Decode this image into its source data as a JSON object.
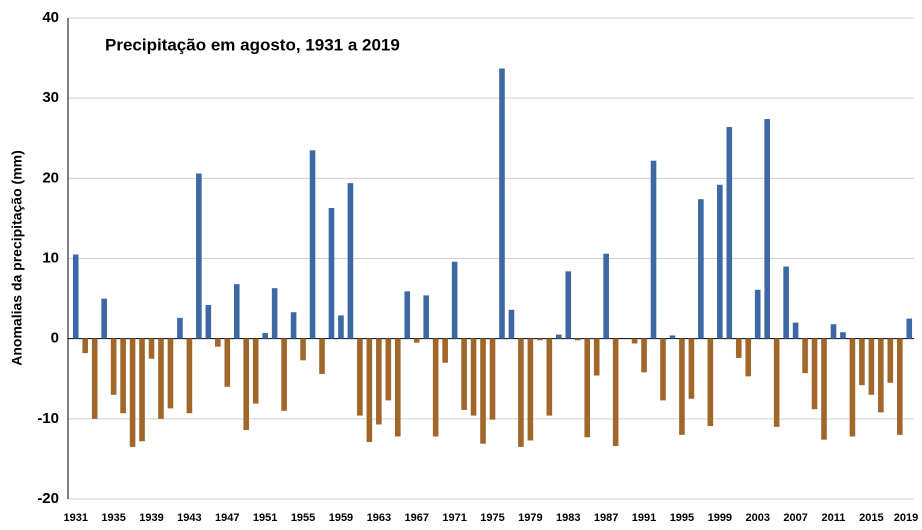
{
  "chart_data": {
    "type": "bar",
    "title": "Precipitação em agosto, 1931 a 2019",
    "y_label": "Anomalias da precipitação (mm)",
    "categories": [
      1931,
      null,
      null,
      null,
      1935,
      null,
      null,
      null,
      1939,
      null,
      null,
      null,
      1943,
      null,
      null,
      null,
      1947,
      null,
      null,
      null,
      1951,
      null,
      null,
      null,
      1955,
      null,
      null,
      null,
      1959,
      null,
      null,
      null,
      1963,
      null,
      null,
      null,
      1967,
      null,
      null,
      null,
      1971,
      null,
      null,
      null,
      1975,
      null,
      null,
      null,
      1979,
      null,
      null,
      null,
      1983,
      null,
      null,
      null,
      1987,
      null,
      null,
      null,
      1991,
      null,
      null,
      null,
      1995,
      null,
      null,
      null,
      1999,
      null,
      null,
      null,
      2003,
      null,
      null,
      null,
      2007,
      null,
      null,
      null,
      2011,
      null,
      null,
      null,
      2015,
      null,
      null,
      null,
      2019
    ],
    "values": [
      10.5,
      -1.8,
      -10,
      5,
      -7,
      -9.3,
      -13.5,
      -12.8,
      -2.5,
      -10,
      -8.7,
      2.6,
      -9.3,
      20.6,
      4.2,
      -1,
      -6,
      6.8,
      -11.4,
      -8.1,
      0.7,
      6.3,
      -9,
      3.3,
      -2.7,
      23.5,
      -4.4,
      16.3,
      2.9,
      19.4,
      -9.6,
      -12.9,
      -10.7,
      -7.7,
      -12.2,
      5.9,
      -0.5,
      5.4,
      -12.2,
      -3,
      9.6,
      -8.9,
      -9.6,
      -13.1,
      -10.1,
      33.7,
      3.6,
      -13.5,
      -12.7,
      -0.2,
      -9.6,
      0.5,
      8.4,
      -0.2,
      -12.3,
      -4.6,
      10.6,
      -13.4,
      0,
      -0.6,
      -4.2,
      22.2,
      -7.7,
      0.4,
      -12,
      -7.5,
      17.4,
      -10.9,
      19.2,
      26.4,
      -2.4,
      -4.7,
      6.1,
      27.4,
      -11,
      9,
      2,
      -4.3,
      -8.8,
      -12.6,
      1.8,
      0.8,
      -12.2,
      -5.8,
      -7,
      -9.2,
      -5.5,
      -12,
      2.5
    ],
    "color_positive": "#3d68a3",
    "color_negative": "#a0662a",
    "ylim": [
      -20,
      40
    ],
    "yticks": [
      -20,
      -10,
      0,
      10,
      20,
      30,
      40
    ],
    "grid": true
  }
}
